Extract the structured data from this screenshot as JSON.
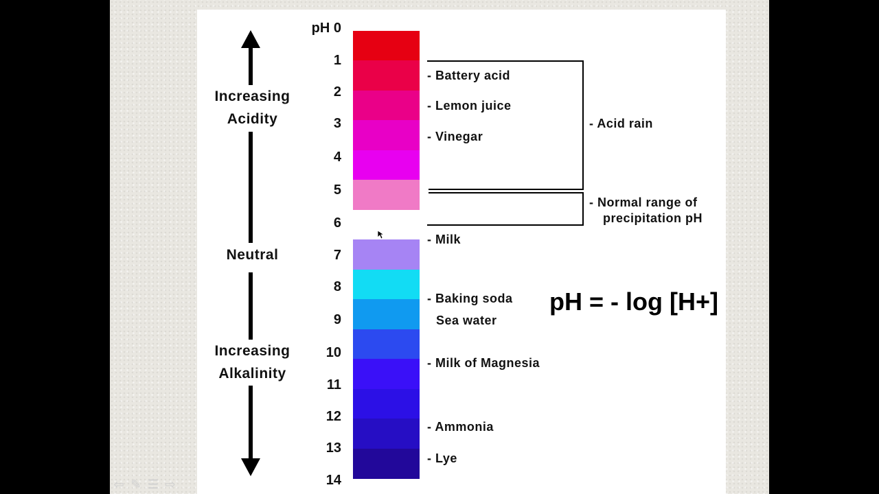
{
  "axis": {
    "top_label": [
      "Increasing",
      "Acidity"
    ],
    "middle_label": "Neutral",
    "bottom_label": [
      "Increasing",
      "Alkalinity"
    ]
  },
  "scale": {
    "prefix": "pH",
    "ticks": [
      "0",
      "1",
      "2",
      "3",
      "4",
      "5",
      "6",
      "7",
      "8",
      "9",
      "10",
      "11",
      "12",
      "13",
      "14"
    ],
    "band_colors": [
      "#e60012",
      "#ea0048",
      "#ea0088",
      "#e800c6",
      "#e800f0",
      "#f07ac6",
      "#ffffff",
      "#a684f4",
      "#12dcf4",
      "#109af0",
      "#2c4af0",
      "#3a10f8",
      "#2c10e6",
      "#260ec4",
      "#22089a"
    ]
  },
  "substances": [
    {
      "label": "- Battery acid"
    },
    {
      "label": "- Lemon juice"
    },
    {
      "label": "- Vinegar"
    },
    {
      "label": "- Milk"
    },
    {
      "label": "- Baking soda"
    },
    {
      "label": "Sea water"
    },
    {
      "label": "- Milk of Magnesia"
    },
    {
      "label": "- Ammonia"
    },
    {
      "label": "- Lye"
    }
  ],
  "ranges": {
    "acid_rain": "- Acid rain",
    "normal_precip": [
      "- Normal range of",
      "precipitation pH"
    ]
  },
  "formula": "pH = - log [H+]",
  "nav": {
    "icons": [
      "prev-arrow-icon",
      "pen-icon",
      "menu-icon",
      "next-arrow-icon"
    ]
  }
}
